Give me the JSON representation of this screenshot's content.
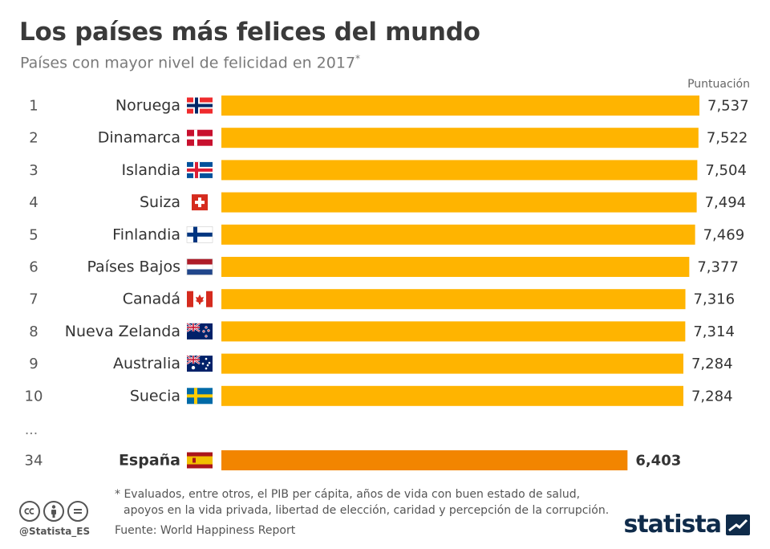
{
  "header": {
    "title": "Los países más felices del mundo",
    "subtitle": "Países con mayor nivel de felicidad en 2017",
    "subtitle_mark": "*",
    "unit_label": "Puntuación"
  },
  "chart_data": {
    "type": "bar",
    "orientation": "horizontal",
    "title": "Los países más felices del mundo",
    "subtitle": "Países con mayor nivel de felicidad en 2017*",
    "value_label": "Puntuación",
    "rows": [
      {
        "rank": "1",
        "country": "Noruega",
        "value": 7.537,
        "label": "7,537",
        "flag": "norway-flag"
      },
      {
        "rank": "2",
        "country": "Dinamarca",
        "value": 7.522,
        "label": "7,522",
        "flag": "denmark-flag"
      },
      {
        "rank": "3",
        "country": "Islandia",
        "value": 7.504,
        "label": "7,504",
        "flag": "iceland-flag"
      },
      {
        "rank": "4",
        "country": "Suiza",
        "value": 7.494,
        "label": "7,494",
        "flag": "switzerland-flag"
      },
      {
        "rank": "5",
        "country": "Finlandia",
        "value": 7.469,
        "label": "7,469",
        "flag": "finland-flag"
      },
      {
        "rank": "6",
        "country": "Países Bajos",
        "value": 7.377,
        "label": "7,377",
        "flag": "netherlands-flag"
      },
      {
        "rank": "7",
        "country": "Canadá",
        "value": 7.316,
        "label": "7,316",
        "flag": "canada-flag"
      },
      {
        "rank": "8",
        "country": "Nueva Zelanda",
        "value": 7.314,
        "label": "7,314",
        "flag": "new-zealand-flag"
      },
      {
        "rank": "9",
        "country": "Australia",
        "value": 7.284,
        "label": "7,284",
        "flag": "australia-flag"
      },
      {
        "rank": "10",
        "country": "Suecia",
        "value": 7.284,
        "label": "7,284",
        "flag": "sweden-flag"
      }
    ],
    "ellipsis": "...",
    "highlight": {
      "rank": "34",
      "country": "España",
      "value": 6.403,
      "label": "6,403",
      "flag": "spain-flag"
    },
    "colors": {
      "bar": "#FFB400",
      "highlight": "#F28500"
    }
  },
  "footnote": {
    "line1": "* Evaluados, entre otros, el PIB per cápita, años de vida con buen estado de salud,",
    "line2": "apoyos en la vida privada, libertad de elección, caridad y percepción de la corrupción."
  },
  "source": "Fuente: World Happiness Report",
  "handle": "@Statista_ES",
  "brand": "statista"
}
